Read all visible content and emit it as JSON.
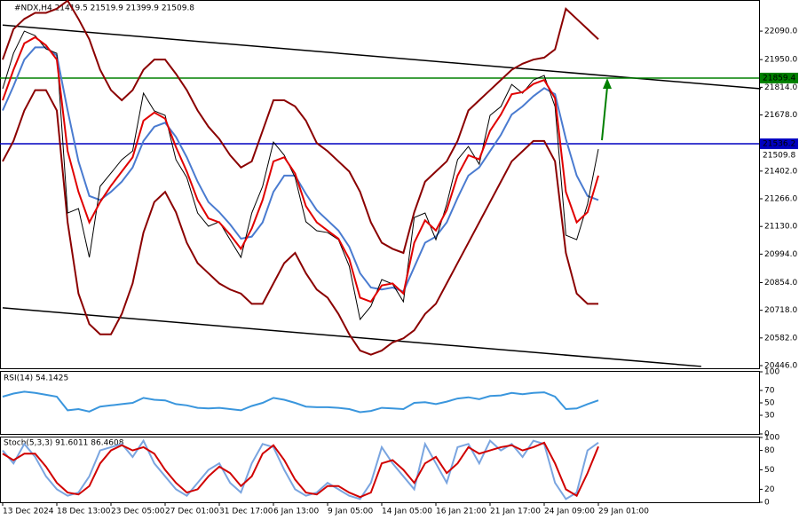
{
  "chart_data": [
    {
      "type": "line",
      "title": "#NDX,H4  21419.5 21519.9 21399.9 21509.8",
      "ylim": [
        20433,
        22243
      ],
      "yticks": [
        {
          "value": 22090,
          "label": "22090.0"
        },
        {
          "value": 21950,
          "label": "21950.0"
        },
        {
          "value": 21814,
          "label": "21814.0"
        },
        {
          "value": 21678,
          "label": "21678.0"
        },
        {
          "value": 21402,
          "label": "21402.0"
        },
        {
          "value": 21266,
          "label": "21266.0"
        },
        {
          "value": 21130,
          "label": "21130.0"
        },
        {
          "value": 20994,
          "label": "20994.0"
        },
        {
          "value": 20854,
          "label": "20854.0"
        },
        {
          "value": 20718,
          "label": "20718.0"
        },
        {
          "value": 20582,
          "label": "20582.0"
        },
        {
          "value": 20446,
          "label": "20446.0"
        }
      ],
      "series": [
        {
          "color": "#8b0000",
          "values": [
            21950,
            22100,
            22150,
            22180,
            22180,
            22200,
            22240,
            22150,
            22050,
            21900,
            21800,
            21750,
            21800,
            21900,
            21950,
            21950,
            21880,
            21800,
            21700,
            21620,
            21560,
            21480,
            21420,
            21450,
            21600,
            21750,
            21750,
            21720,
            21650,
            21540,
            21500,
            21450,
            21400,
            21300,
            21150,
            21050,
            21020,
            21000,
            21200,
            21350,
            21400,
            21450,
            21550,
            21700,
            21750,
            21800,
            21850,
            21900,
            21930,
            21950,
            21960,
            22000,
            22200,
            22150,
            22100,
            22050
          ]
        },
        {
          "color": "#8b0000",
          "values": [
            21450,
            21550,
            21700,
            21800,
            21800,
            21700,
            21150,
            20800,
            20650,
            20600,
            20600,
            20700,
            20850,
            21100,
            21250,
            21300,
            21200,
            21050,
            20950,
            20900,
            20850,
            20820,
            20800,
            20750,
            20750,
            20850,
            20950,
            21000,
            20900,
            20820,
            20780,
            20700,
            20600,
            20520,
            20500,
            20520,
            20560,
            20580,
            20620,
            20700,
            20750,
            20850,
            20950,
            21050,
            21150,
            21250,
            21350,
            21450,
            21500,
            21550,
            21550,
            21450,
            21000,
            20800,
            20750,
            20750
          ]
        },
        {
          "color": "#4a7bd0",
          "values": [
            21700,
            21820,
            21950,
            22010,
            22010,
            21970,
            21700,
            21450,
            21280,
            21260,
            21300,
            21350,
            21420,
            21550,
            21620,
            21640,
            21570,
            21470,
            21350,
            21250,
            21200,
            21140,
            21070,
            21080,
            21150,
            21300,
            21380,
            21380,
            21290,
            21210,
            21160,
            21110,
            21030,
            20900,
            20830,
            20820,
            20830,
            20810,
            20930,
            21050,
            21080,
            21150,
            21270,
            21380,
            21420,
            21500,
            21580,
            21680,
            21720,
            21770,
            21810,
            21780,
            21560,
            21380,
            21280,
            21260
          ]
        },
        {
          "color": "#000000",
          "values": [
            21807,
            21981,
            22090,
            22068,
            22003,
            21981,
            21196,
            21218,
            20978,
            21327,
            21392,
            21458,
            21501,
            21785,
            21698,
            21676,
            21458,
            21371,
            21196,
            21131,
            21153,
            21065,
            20978,
            21196,
            21327,
            21545,
            21480,
            21371,
            21153,
            21109,
            21100,
            21065,
            20935,
            20673,
            20738,
            20869,
            20847,
            20760,
            21174,
            21196,
            21065,
            21240,
            21458,
            21523,
            21436,
            21676,
            21719,
            21828,
            21785,
            21850,
            21872,
            21719,
            21087,
            21065,
            21240,
            21510
          ]
        },
        {
          "color": "#e00000",
          "values": [
            21750,
            21900,
            22030,
            22060,
            22020,
            21950,
            21500,
            21300,
            21150,
            21250,
            21330,
            21400,
            21470,
            21650,
            21690,
            21660,
            21520,
            21400,
            21260,
            21170,
            21150,
            21090,
            21020,
            21120,
            21260,
            21450,
            21470,
            21390,
            21230,
            21150,
            21110,
            21070,
            20970,
            20780,
            20760,
            20840,
            20850,
            20800,
            21050,
            21160,
            21110,
            21210,
            21380,
            21480,
            21460,
            21600,
            21680,
            21780,
            21790,
            21830,
            21850,
            21760,
            21300,
            21150,
            21200,
            21380
          ]
        }
      ],
      "trendlines": [
        {
          "color": "#000000",
          "x": [
            0,
            70
          ],
          "values": [
            22120,
            21807
          ]
        },
        {
          "color": "#000000",
          "x": [
            0,
            64.5
          ],
          "values": [
            20730,
            20442
          ]
        }
      ],
      "hlines": [
        {
          "color": "#008000",
          "value": 21859.4
        },
        {
          "color": "#0000c0",
          "value": 21536.2
        }
      ],
      "last_price": 21509.8
    },
    {
      "type": "line",
      "title": "RSI(14) 54.1425",
      "ylim": [
        0,
        100
      ],
      "yticks": [
        100,
        70,
        50,
        30,
        0
      ],
      "series": [
        {
          "color": "#3a96dd",
          "values": [
            60,
            65,
            68,
            66,
            63,
            60,
            38,
            40,
            36,
            44,
            46,
            48,
            50,
            58,
            55,
            54,
            48,
            46,
            42,
            41,
            42,
            40,
            38,
            45,
            50,
            58,
            55,
            50,
            44,
            43,
            43,
            42,
            40,
            35,
            37,
            42,
            41,
            40,
            50,
            51,
            48,
            52,
            57,
            59,
            56,
            61,
            62,
            66,
            64,
            66,
            67,
            60,
            40,
            41,
            48,
            54
          ]
        }
      ]
    },
    {
      "type": "line",
      "title": "Stoch(5,3,3) 91.6011 86.4608",
      "ylim": [
        0,
        100
      ],
      "yticks": [
        100,
        80,
        50,
        20,
        0
      ],
      "categories": [
        "13 Dec 2024",
        null,
        null,
        null,
        null,
        "18 Dec 13:00",
        null,
        null,
        null,
        null,
        "23 Dec 05:00",
        null,
        null,
        null,
        null,
        "27 Dec 01:00",
        null,
        null,
        null,
        null,
        "31 Dec 17:00",
        null,
        null,
        null,
        null,
        "6 Jan 13:00",
        null,
        null,
        null,
        null,
        "9 Jan 05:00",
        null,
        null,
        null,
        null,
        "14 Jan 05:00",
        null,
        null,
        null,
        null,
        "16 Jan 21:00",
        null,
        null,
        null,
        null,
        "21 Jan 17:00",
        null,
        null,
        null,
        null,
        "24 Jan 09:00",
        null,
        null,
        null,
        null,
        "29 Jan 01:00"
      ],
      "series": [
        {
          "color": "#7aa5e0",
          "values": [
            80,
            60,
            90,
            70,
            40,
            20,
            10,
            15,
            40,
            80,
            85,
            90,
            70,
            95,
            60,
            40,
            20,
            10,
            30,
            50,
            60,
            30,
            15,
            60,
            90,
            85,
            50,
            20,
            10,
            15,
            30,
            20,
            10,
            5,
            30,
            85,
            60,
            40,
            20,
            90,
            60,
            30,
            85,
            90,
            60,
            95,
            80,
            90,
            70,
            95,
            90,
            30,
            5,
            15,
            80,
            92
          ]
        },
        {
          "color": "#d00000",
          "values": [
            75,
            65,
            75,
            75,
            55,
            30,
            15,
            12,
            25,
            60,
            80,
            88,
            80,
            85,
            75,
            50,
            30,
            15,
            20,
            40,
            55,
            45,
            25,
            40,
            75,
            88,
            65,
            35,
            15,
            12,
            25,
            25,
            15,
            8,
            15,
            60,
            65,
            50,
            30,
            60,
            70,
            45,
            60,
            85,
            75,
            80,
            85,
            88,
            80,
            85,
            92,
            60,
            20,
            10,
            45,
            86
          ]
        }
      ]
    }
  ]
}
